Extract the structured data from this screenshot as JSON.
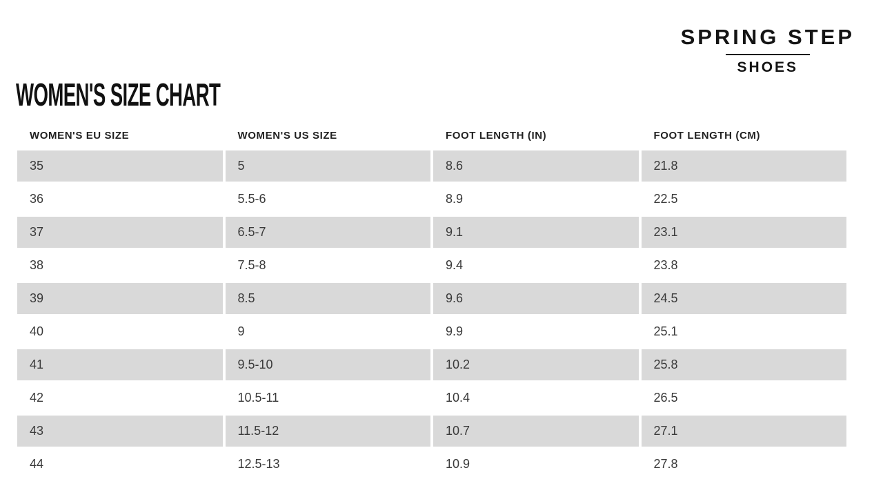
{
  "page": {
    "title": "WOMEN'S SIZE CHART"
  },
  "brand": {
    "name": "SPRING STEP",
    "tagline": "SHOES"
  },
  "chart_data": {
    "type": "table",
    "title": "WOMEN'S SIZE CHART",
    "columns": [
      "WOMEN'S EU SIZE",
      "WOMEN'S US SIZE",
      "FOOT LENGTH (IN)",
      "FOOT LENGTH (CM)"
    ],
    "rows": [
      [
        "35",
        "5",
        "8.6",
        "21.8"
      ],
      [
        "36",
        "5.5-6",
        "8.9",
        "22.5"
      ],
      [
        "37",
        "6.5-7",
        "9.1",
        "23.1"
      ],
      [
        "38",
        "7.5-8",
        "9.4",
        "23.8"
      ],
      [
        "39",
        "8.5",
        "9.6",
        "24.5"
      ],
      [
        "40",
        "9",
        "9.9",
        "25.1"
      ],
      [
        "41",
        "9.5-10",
        "10.2",
        "25.8"
      ],
      [
        "42",
        "10.5-11",
        "10.4",
        "26.5"
      ],
      [
        "43",
        "11.5-12",
        "10.7",
        "27.1"
      ],
      [
        "44",
        "12.5-13",
        "10.9",
        "27.8"
      ]
    ],
    "layout_hints": {
      "stripe_pattern": "odd rows shaded starting with first data row",
      "grid": "off",
      "column_alignment": "left"
    }
  },
  "colors": {
    "row_stripe": "#d9d9d9",
    "cell_text": "#3a3a3a",
    "header_text": "#222222",
    "title_text": "#111111",
    "brand_text": "#141414",
    "background": "#ffffff"
  }
}
